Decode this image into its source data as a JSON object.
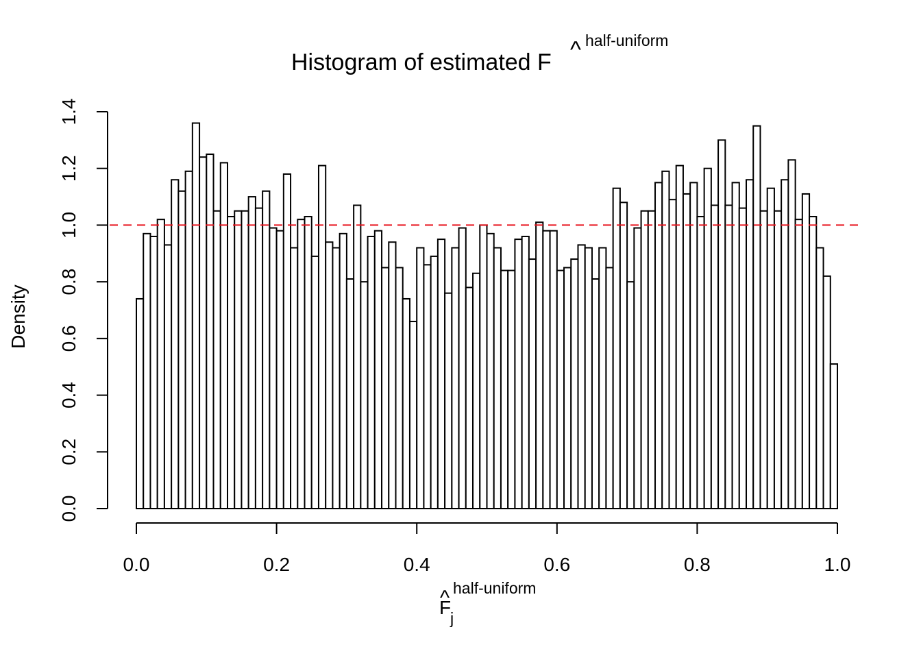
{
  "chart_data": {
    "type": "bar",
    "title_main": "Histogram of estimated F",
    "title_sup": "half-uniform",
    "xlabel_main": "F",
    "xlabel_sub": "j",
    "xlabel_sup": "half-uniform",
    "ylabel": "Density",
    "xlim": [
      0,
      1
    ],
    "ylim": [
      0,
      1.4
    ],
    "x_ticks": [
      "0.0",
      "0.2",
      "0.4",
      "0.6",
      "0.8",
      "1.0"
    ],
    "y_ticks": [
      "0.0",
      "0.2",
      "0.4",
      "0.6",
      "0.8",
      "1.0",
      "1.2",
      "1.4"
    ],
    "bin_width": 0.01,
    "reference_line": {
      "y": 1.0,
      "style": "dashed",
      "color": "#e8141e"
    },
    "values": [
      0.74,
      0.97,
      0.96,
      1.02,
      0.93,
      1.16,
      1.12,
      1.19,
      1.36,
      1.24,
      1.25,
      1.05,
      1.22,
      1.03,
      1.05,
      1.05,
      1.1,
      1.06,
      1.12,
      0.99,
      0.98,
      1.18,
      0.92,
      1.02,
      1.03,
      0.89,
      1.21,
      0.94,
      0.92,
      0.97,
      0.81,
      1.07,
      0.8,
      0.96,
      0.98,
      0.85,
      0.94,
      0.85,
      0.74,
      0.66,
      0.92,
      0.86,
      0.89,
      0.95,
      0.76,
      0.92,
      0.99,
      0.78,
      0.83,
      1.0,
      0.97,
      0.92,
      0.84,
      0.84,
      0.95,
      0.96,
      0.88,
      1.01,
      0.98,
      0.98,
      0.84,
      0.85,
      0.88,
      0.93,
      0.92,
      0.81,
      0.92,
      0.85,
      1.13,
      1.08,
      0.8,
      0.99,
      1.05,
      1.05,
      1.15,
      1.19,
      1.09,
      1.21,
      1.11,
      1.15,
      1.03,
      1.2,
      1.07,
      1.3,
      1.07,
      1.15,
      1.06,
      1.16,
      1.35,
      1.05,
      1.13,
      1.05,
      1.16,
      1.23,
      1.02,
      1.11,
      1.03,
      0.92,
      0.82,
      0.51
    ]
  }
}
